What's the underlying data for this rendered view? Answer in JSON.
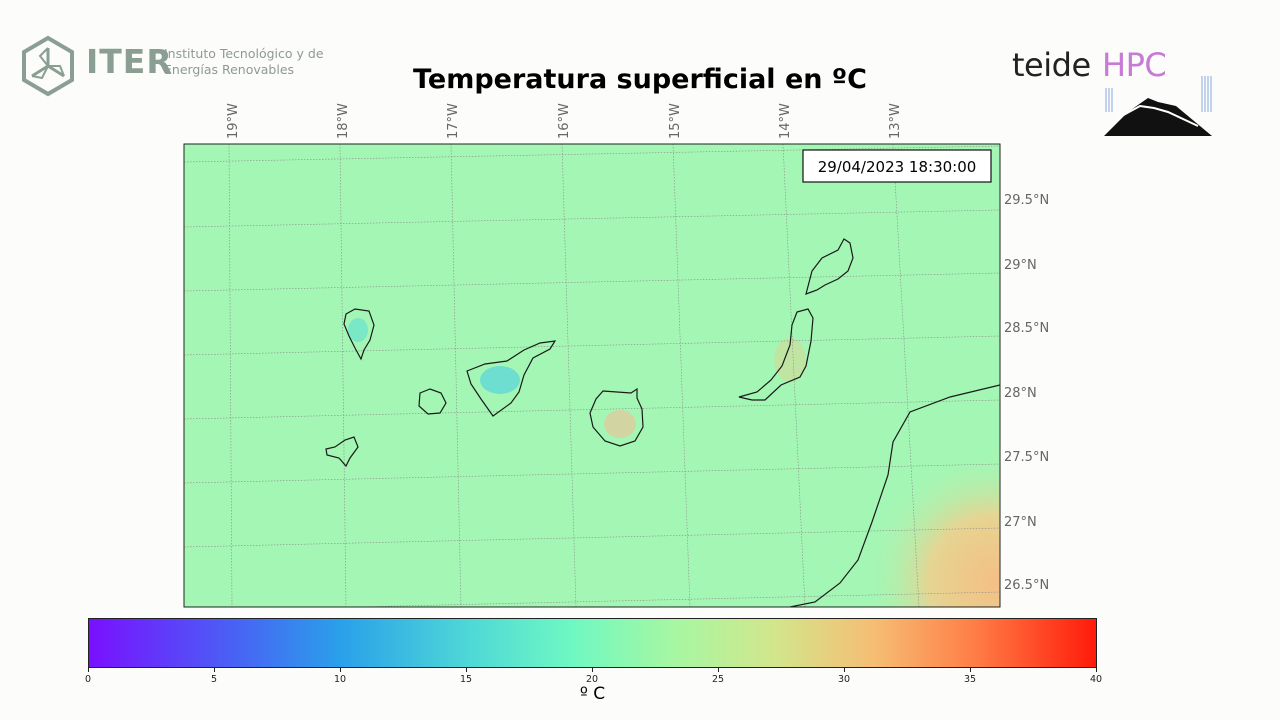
{
  "title": "Temperatura superficial en ºC",
  "timestamp": "29/04/2023 18:30:00",
  "logos": {
    "iter_word": "ITER",
    "iter_subtitle_line1": "Instituto Tecnológico y de",
    "iter_subtitle_line2": "Energías Renovables",
    "teide_word": "teide",
    "hpc_word": "HPC"
  },
  "map": {
    "lon_labels": [
      "19°W",
      "18°W",
      "17°W",
      "16°W",
      "15°W",
      "14°W",
      "13°W"
    ],
    "lat_labels": [
      "29.5°N",
      "29°N",
      "28.5°N",
      "28°N",
      "27.5°N",
      "27°N",
      "26.5°N"
    ],
    "background_color": "#a4f6b4"
  },
  "colorbar": {
    "ticks": [
      "0",
      "5",
      "10",
      "15",
      "20",
      "25",
      "30",
      "35",
      "40"
    ],
    "unit": "º C",
    "colors": [
      "#7a10ff",
      "#2aa0ea",
      "#6ff8c2",
      "#d2e68c",
      "#ff1b0a"
    ]
  }
}
